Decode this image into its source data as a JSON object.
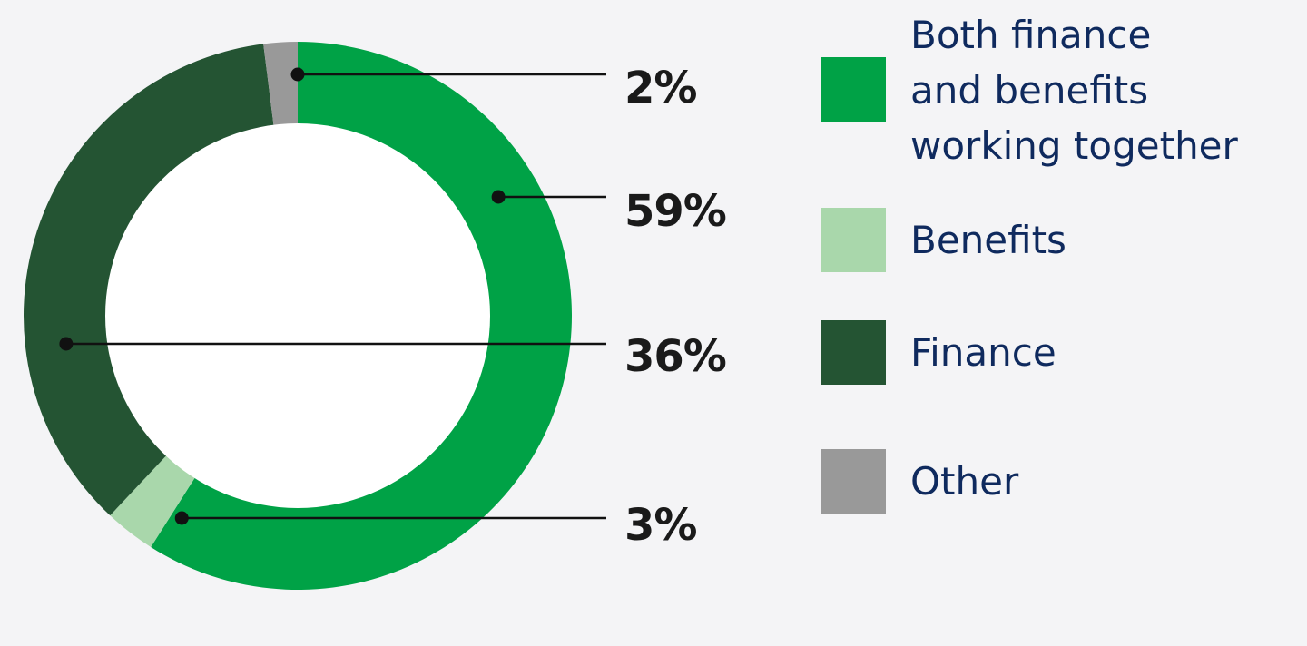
{
  "chart_data": {
    "type": "pie",
    "variant": "donut",
    "categories": [
      "Both finance and benefits working together",
      "Benefits",
      "Finance",
      "Other"
    ],
    "values": [
      59,
      3,
      36,
      2
    ],
    "labels": [
      "59%",
      "3%",
      "36%",
      "2%"
    ],
    "colors": [
      "#00a246",
      "#a9d7ab",
      "#245433",
      "#999999"
    ],
    "legend": "right",
    "title": ""
  },
  "legend_items": [
    {
      "label": "Both finance\nand benefits\nworking together",
      "color": "#00a246"
    },
    {
      "label": "Benefits",
      "color": "#a9d7ab"
    },
    {
      "label": "Finance",
      "color": "#245433"
    },
    {
      "label": "Other",
      "color": "#999999"
    }
  ]
}
